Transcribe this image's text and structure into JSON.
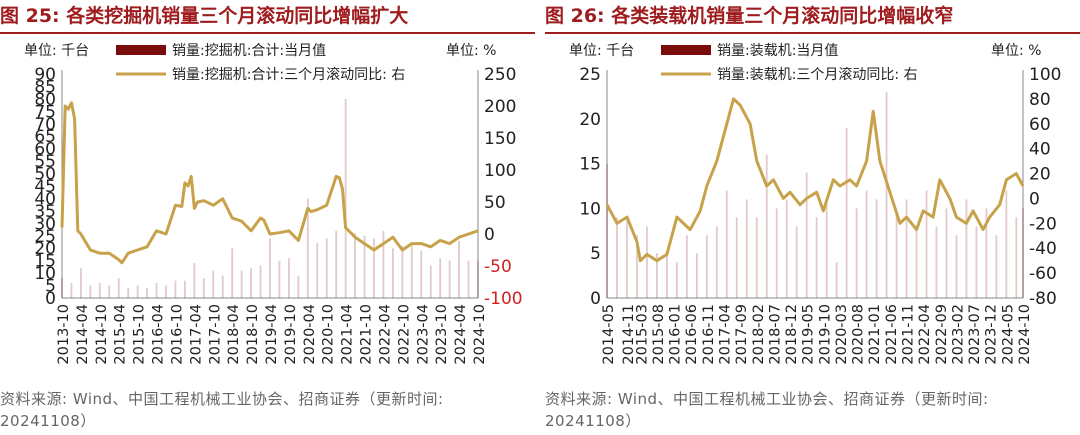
{
  "figures": [
    {
      "title": "图 25: 各类挖掘机销量三个月滚动同比增幅扩大",
      "source": "资料来源: Wind、中国工程机械工业协会、招商证券（更新时间: 20241108）",
      "left_unit": "单位: 千台",
      "right_unit": "单位: %",
      "legend": [
        "销量:挖掘机:合计:当月值",
        "销量:挖掘机:合计:三个月滚动同比: 右"
      ]
    },
    {
      "title": "图 26: 各类装载机销量三个月滚动同比增幅收窄",
      "source": "资料来源: Wind、中国工程机械工业协会、招商证券（更新时间: 20241108）",
      "left_unit": "单位: 千台",
      "right_unit": "单位: %",
      "legend": [
        "销量:装载机:当月值",
        "销量:装载机:三个月滚动同比: 右"
      ]
    }
  ],
  "chart_data": [
    {
      "type": "bar",
      "combo_line": true,
      "title": "图 25: 各类挖掘机销量三个月滚动同比增幅扩大",
      "y_left": {
        "unit": "千台",
        "lim": [
          0,
          90
        ],
        "ticks": [
          0,
          5,
          10,
          15,
          20,
          25,
          30,
          35,
          40,
          45,
          50,
          55,
          60,
          65,
          70,
          75,
          80,
          85,
          90
        ]
      },
      "y_right": {
        "unit": "%",
        "lim": [
          -100,
          250
        ],
        "ticks": [
          -100,
          -50,
          0,
          50,
          100,
          150,
          200,
          250
        ],
        "tick_color": "#d42020"
      },
      "x_ticks": [
        "2013-10",
        "2014-04",
        "2014-10",
        "2015-04",
        "2015-10",
        "2016-04",
        "2016-10",
        "2017-04",
        "2017-10",
        "2018-04",
        "2018-10",
        "2019-04",
        "2019-10",
        "2020-04",
        "2020-10",
        "2021-04",
        "2021-10",
        "2022-04",
        "2022-10",
        "2023-04",
        "2023-10",
        "2024-04",
        "2024-10"
      ],
      "series": [
        {
          "name": "销量:挖掘机:合计:当月值",
          "type": "bar",
          "axis": "left",
          "color": "#7a0c0c",
          "x": [
            "2013-10",
            "2014-01",
            "2014-04",
            "2014-07",
            "2014-10",
            "2015-01",
            "2015-04",
            "2015-07",
            "2015-10",
            "2016-01",
            "2016-04",
            "2016-07",
            "2016-10",
            "2017-01",
            "2017-04",
            "2017-07",
            "2017-10",
            "2018-01",
            "2018-04",
            "2018-07",
            "2018-10",
            "2019-01",
            "2019-04",
            "2019-07",
            "2019-10",
            "2020-01",
            "2020-04",
            "2020-07",
            "2020-10",
            "2021-01",
            "2021-04",
            "2021-07",
            "2021-10",
            "2022-01",
            "2022-04",
            "2022-07",
            "2022-10",
            "2023-01",
            "2023-04",
            "2023-07",
            "2023-10",
            "2024-01",
            "2024-04",
            "2024-07",
            "2024-10"
          ],
          "values": [
            8,
            6,
            12,
            5,
            6,
            5,
            8,
            4,
            5,
            4,
            6,
            5,
            7,
            7,
            14,
            8,
            11,
            9,
            20,
            11,
            12,
            13,
            24,
            15,
            16,
            9,
            40,
            22,
            24,
            27,
            80,
            26,
            25,
            24,
            27,
            20,
            21,
            21,
            19,
            13,
            16,
            15,
            23,
            15,
            15
          ]
        },
        {
          "name": "销量:挖掘机:合计:三个月滚动同比: 右",
          "type": "line",
          "axis": "right",
          "color": "#c8a24a",
          "x": [
            "2013-10",
            "2013-11",
            "2013-12",
            "2014-01",
            "2014-02",
            "2014-03",
            "2014-04",
            "2014-07",
            "2014-10",
            "2015-01",
            "2015-04",
            "2015-05",
            "2015-07",
            "2015-10",
            "2016-01",
            "2016-04",
            "2016-07",
            "2016-10",
            "2016-12",
            "2017-01",
            "2017-02",
            "2017-03",
            "2017-04",
            "2017-05",
            "2017-07",
            "2017-10",
            "2018-01",
            "2018-04",
            "2018-07",
            "2018-10",
            "2019-01",
            "2019-02",
            "2019-04",
            "2019-07",
            "2019-10",
            "2020-01",
            "2020-04",
            "2020-05",
            "2020-07",
            "2020-10",
            "2021-01",
            "2021-02",
            "2021-03",
            "2021-04",
            "2021-07",
            "2021-10",
            "2022-01",
            "2022-04",
            "2022-07",
            "2022-10",
            "2023-01",
            "2023-04",
            "2023-07",
            "2023-10",
            "2024-01",
            "2024-04",
            "2024-07",
            "2024-10"
          ],
          "values": [
            10,
            200,
            195,
            205,
            180,
            5,
            0,
            -25,
            -30,
            -30,
            -40,
            -45,
            -30,
            -25,
            -20,
            5,
            0,
            45,
            43,
            80,
            75,
            90,
            40,
            50,
            52,
            45,
            55,
            25,
            20,
            5,
            25,
            22,
            0,
            2,
            5,
            -10,
            40,
            35,
            38,
            45,
            90,
            88,
            70,
            10,
            -5,
            -15,
            -25,
            -15,
            -5,
            -25,
            -15,
            -15,
            -20,
            -10,
            -15,
            -5,
            0,
            5
          ]
        }
      ]
    },
    {
      "type": "bar",
      "combo_line": true,
      "title": "图 26: 各类装载机销量三个月滚动同比增幅收窄",
      "y_left": {
        "unit": "千台",
        "lim": [
          0,
          25
        ],
        "ticks": [
          0,
          5,
          10,
          15,
          20,
          25
        ]
      },
      "y_right": {
        "unit": "%",
        "lim": [
          -80,
          100
        ],
        "ticks": [
          -80,
          -60,
          -40,
          -20,
          0,
          20,
          40,
          60,
          80,
          100
        ]
      },
      "x_ticks": [
        "2014-05",
        "2014-11",
        "2015-03",
        "2015-08",
        "2016-01",
        "2016-06",
        "2016-11",
        "2017-04",
        "2017-09",
        "2018-02",
        "2018-07",
        "2018-12",
        "2019-05",
        "2019-10",
        "2020-03",
        "2020-08",
        "2021-01",
        "2021-06",
        "2021-11",
        "2022-04",
        "2022-09",
        "2023-02",
        "2023-07",
        "2023-12",
        "2024-05",
        "2024-10"
      ],
      "series": [
        {
          "name": "销量:装载机:当月值",
          "type": "bar",
          "axis": "left",
          "color": "#7a0c0c",
          "x": [
            "2014-05",
            "2014-08",
            "2014-11",
            "2015-02",
            "2015-05",
            "2015-08",
            "2015-11",
            "2016-02",
            "2016-05",
            "2016-08",
            "2016-11",
            "2017-02",
            "2017-05",
            "2017-08",
            "2017-11",
            "2018-02",
            "2018-05",
            "2018-08",
            "2018-11",
            "2019-02",
            "2019-05",
            "2019-08",
            "2019-11",
            "2020-02",
            "2020-05",
            "2020-08",
            "2020-11",
            "2021-02",
            "2021-05",
            "2021-08",
            "2021-11",
            "2022-02",
            "2022-05",
            "2022-08",
            "2022-11",
            "2023-02",
            "2023-05",
            "2023-08",
            "2023-11",
            "2024-02",
            "2024-05",
            "2024-08",
            "2024-10"
          ],
          "values": [
            15,
            9,
            9,
            7,
            8,
            5,
            5,
            4,
            7,
            5,
            7,
            8,
            12,
            9,
            11,
            9,
            16,
            10,
            11,
            8,
            14,
            9,
            11,
            4,
            19,
            10,
            12,
            11,
            23,
            10,
            11,
            8,
            12,
            8,
            10,
            7,
            11,
            8,
            10,
            7,
            12,
            9,
            10
          ]
        },
        {
          "name": "销量:装载机:三个月滚动同比: 右",
          "type": "line",
          "axis": "right",
          "color": "#c8a24a",
          "x": [
            "2014-05",
            "2014-08",
            "2014-11",
            "2015-02",
            "2015-03",
            "2015-05",
            "2015-08",
            "2015-11",
            "2016-02",
            "2016-06",
            "2016-09",
            "2016-11",
            "2017-02",
            "2017-04",
            "2017-07",
            "2017-09",
            "2017-12",
            "2018-02",
            "2018-05",
            "2018-07",
            "2018-10",
            "2018-12",
            "2019-03",
            "2019-05",
            "2019-08",
            "2019-10",
            "2020-01",
            "2020-03",
            "2020-06",
            "2020-08",
            "2020-11",
            "2021-01",
            "2021-03",
            "2021-06",
            "2021-09",
            "2021-11",
            "2022-02",
            "2022-04",
            "2022-07",
            "2022-09",
            "2022-12",
            "2023-02",
            "2023-05",
            "2023-07",
            "2023-10",
            "2023-12",
            "2024-03",
            "2024-05",
            "2024-08",
            "2024-10"
          ],
          "values": [
            -5,
            -20,
            -15,
            -35,
            -50,
            -45,
            -50,
            -45,
            -15,
            -25,
            -10,
            10,
            30,
            50,
            80,
            75,
            60,
            30,
            10,
            15,
            0,
            5,
            -5,
            0,
            5,
            -10,
            15,
            10,
            15,
            10,
            30,
            70,
            30,
            5,
            -20,
            -15,
            -25,
            -10,
            -15,
            15,
            0,
            -15,
            -20,
            -10,
            -25,
            -15,
            -5,
            15,
            20,
            10
          ]
        }
      ]
    }
  ]
}
